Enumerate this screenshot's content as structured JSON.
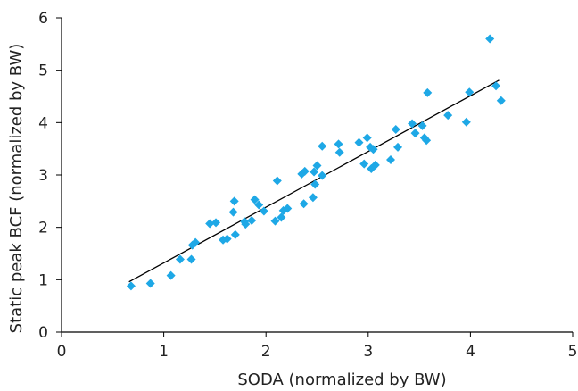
{
  "colors": {
    "point": "#1ea8e6",
    "axis": "#000000",
    "fit": "#000000"
  },
  "chart_data": {
    "type": "scatter",
    "title": "",
    "xlabel": "SODA (normalized by BW)",
    "ylabel": "Static peak BCF (normalized by BW)",
    "xlim": [
      0,
      5
    ],
    "ylim": [
      0,
      6
    ],
    "xticks": [
      0,
      1,
      2,
      3,
      4,
      5
    ],
    "yticks": [
      0,
      1,
      2,
      3,
      4,
      5,
      6
    ],
    "xtick_labels": [
      "0",
      "1",
      "2",
      "3",
      "4",
      "5"
    ],
    "ytick_labels": [
      "0",
      "1",
      "2",
      "3",
      "4",
      "5",
      "6"
    ],
    "grid": false,
    "legend": "none",
    "points": [
      [
        0.68,
        0.88
      ],
      [
        0.87,
        0.93
      ],
      [
        1.07,
        1.08
      ],
      [
        1.16,
        1.39
      ],
      [
        1.27,
        1.39
      ],
      [
        1.28,
        1.66
      ],
      [
        1.31,
        1.71
      ],
      [
        1.45,
        2.07
      ],
      [
        1.51,
        2.09
      ],
      [
        1.58,
        1.76
      ],
      [
        1.62,
        1.78
      ],
      [
        1.68,
        2.29
      ],
      [
        1.69,
        2.5
      ],
      [
        1.7,
        1.86
      ],
      [
        1.79,
        2.11
      ],
      [
        1.8,
        2.06
      ],
      [
        1.86,
        2.13
      ],
      [
        1.89,
        2.53
      ],
      [
        1.93,
        2.43
      ],
      [
        1.98,
        2.31
      ],
      [
        2.09,
        2.12
      ],
      [
        2.11,
        2.89
      ],
      [
        2.15,
        2.19
      ],
      [
        2.17,
        2.32
      ],
      [
        2.21,
        2.36
      ],
      [
        2.35,
        3.02
      ],
      [
        2.37,
        2.45
      ],
      [
        2.38,
        3.07
      ],
      [
        2.46,
        2.57
      ],
      [
        2.47,
        3.06
      ],
      [
        2.48,
        2.82
      ],
      [
        2.5,
        3.18
      ],
      [
        2.55,
        2.99
      ],
      [
        2.55,
        3.55
      ],
      [
        2.71,
        3.59
      ],
      [
        2.72,
        3.43
      ],
      [
        2.91,
        3.62
      ],
      [
        2.96,
        3.21
      ],
      [
        2.99,
        3.71
      ],
      [
        3.02,
        3.53
      ],
      [
        3.03,
        3.12
      ],
      [
        3.05,
        3.49
      ],
      [
        3.07,
        3.19
      ],
      [
        3.22,
        3.29
      ],
      [
        3.27,
        3.87
      ],
      [
        3.29,
        3.53
      ],
      [
        3.43,
        3.98
      ],
      [
        3.46,
        3.8
      ],
      [
        3.53,
        3.94
      ],
      [
        3.55,
        3.71
      ],
      [
        3.57,
        3.66
      ],
      [
        3.58,
        4.57
      ],
      [
        3.78,
        4.14
      ],
      [
        3.96,
        4.01
      ],
      [
        3.99,
        4.58
      ],
      [
        4.19,
        5.6
      ],
      [
        4.25,
        4.7
      ],
      [
        4.3,
        4.42
      ]
    ],
    "trendline": {
      "x": [
        0.66,
        4.28
      ],
      "y": [
        0.96,
        4.81
      ]
    }
  }
}
